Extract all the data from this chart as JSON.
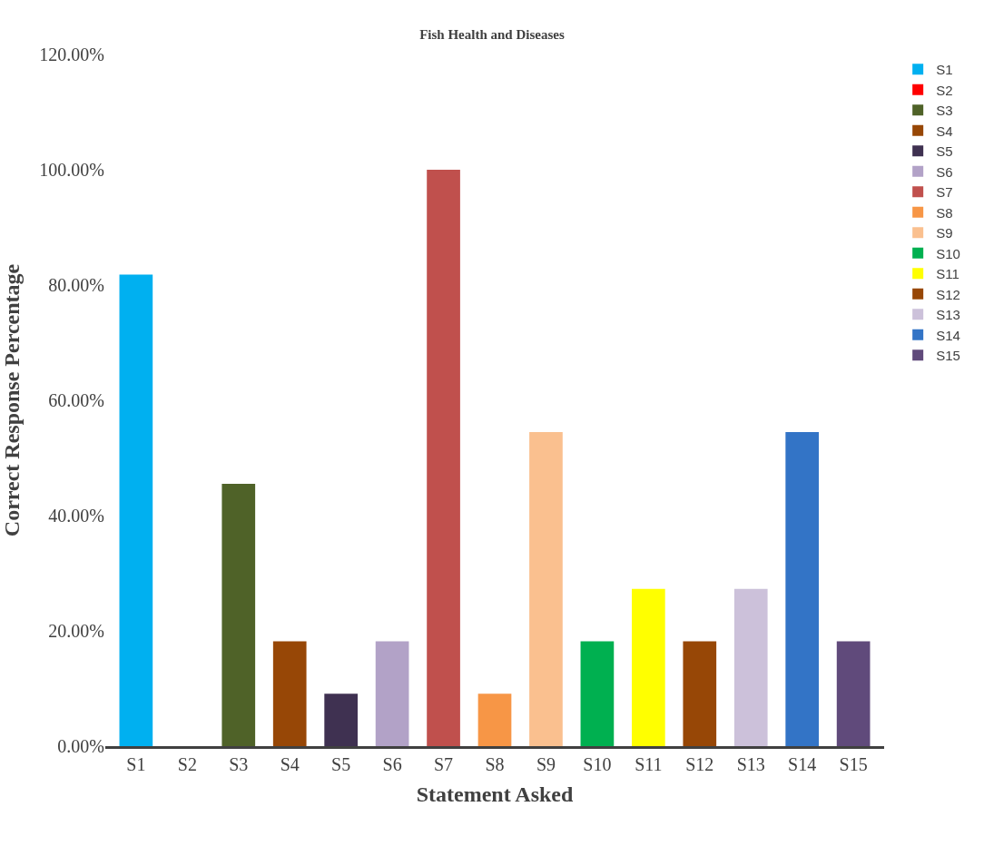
{
  "chart_data": {
    "type": "bar",
    "title": "Fish Health and Diseases",
    "xlabel": "Statement Asked",
    "ylabel": "Correct Response Percentage",
    "categories": [
      "S1",
      "S2",
      "S3",
      "S4",
      "S5",
      "S6",
      "S7",
      "S8",
      "S9",
      "S10",
      "S11",
      "S12",
      "S13",
      "S14",
      "S15"
    ],
    "series": [
      {
        "name": "S1",
        "color": "#00b0f0",
        "values": [
          81.8,
          null,
          null,
          null,
          null,
          null,
          null,
          null,
          null,
          null,
          null,
          null,
          null,
          null,
          null
        ]
      },
      {
        "name": "S2",
        "color": "#ff0000",
        "values": [
          null,
          0,
          null,
          null,
          null,
          null,
          null,
          null,
          null,
          null,
          null,
          null,
          null,
          null,
          null
        ]
      },
      {
        "name": "S3",
        "color": "#4f6228",
        "values": [
          null,
          null,
          45.5,
          null,
          null,
          null,
          null,
          null,
          null,
          null,
          null,
          null,
          null,
          null,
          null
        ]
      },
      {
        "name": "S4",
        "color": "#974706",
        "values": [
          null,
          null,
          null,
          18.2,
          null,
          null,
          null,
          null,
          null,
          null,
          null,
          null,
          null,
          null,
          null
        ]
      },
      {
        "name": "S5",
        "color": "#3f3151",
        "values": [
          null,
          null,
          null,
          null,
          9.1,
          null,
          null,
          null,
          null,
          null,
          null,
          null,
          null,
          null,
          null
        ]
      },
      {
        "name": "S6",
        "color": "#b2a2c7",
        "values": [
          null,
          null,
          null,
          null,
          null,
          18.2,
          null,
          null,
          null,
          null,
          null,
          null,
          null,
          null,
          null
        ]
      },
      {
        "name": "S7",
        "color": "#c0504d",
        "values": [
          null,
          null,
          null,
          null,
          null,
          null,
          100,
          null,
          null,
          null,
          null,
          null,
          null,
          null,
          null
        ]
      },
      {
        "name": "S8",
        "color": "#f79646",
        "values": [
          null,
          null,
          null,
          null,
          null,
          null,
          null,
          9.1,
          null,
          null,
          null,
          null,
          null,
          null,
          null
        ]
      },
      {
        "name": "S9",
        "color": "#fac08f",
        "values": [
          null,
          null,
          null,
          null,
          null,
          null,
          null,
          null,
          54.5,
          null,
          null,
          null,
          null,
          null,
          null
        ]
      },
      {
        "name": "S10",
        "color": "#00b050",
        "values": [
          null,
          null,
          null,
          null,
          null,
          null,
          null,
          null,
          null,
          18.2,
          null,
          null,
          null,
          null,
          null
        ]
      },
      {
        "name": "S11",
        "color": "#ffff00",
        "values": [
          null,
          null,
          null,
          null,
          null,
          null,
          null,
          null,
          null,
          null,
          27.3,
          null,
          null,
          null,
          null
        ]
      },
      {
        "name": "S12",
        "color": "#974706",
        "values": [
          null,
          null,
          null,
          null,
          null,
          null,
          null,
          null,
          null,
          null,
          null,
          18.2,
          null,
          null,
          null
        ]
      },
      {
        "name": "S13",
        "color": "#ccc1da",
        "values": [
          null,
          null,
          null,
          null,
          null,
          null,
          null,
          null,
          null,
          null,
          null,
          null,
          27.3,
          null,
          null
        ]
      },
      {
        "name": "S14",
        "color": "#3374c6",
        "values": [
          null,
          null,
          null,
          null,
          null,
          null,
          null,
          null,
          null,
          null,
          null,
          null,
          null,
          54.5,
          null
        ]
      },
      {
        "name": "S15",
        "color": "#604a7b",
        "values": [
          null,
          null,
          null,
          null,
          null,
          null,
          null,
          null,
          null,
          null,
          null,
          null,
          null,
          null,
          18.2
        ]
      }
    ],
    "ylim": [
      0,
      120
    ],
    "yticks": [
      {
        "value": 0,
        "label": "0.00%"
      },
      {
        "value": 20,
        "label": "20.00%"
      },
      {
        "value": 40,
        "label": "40.00%"
      },
      {
        "value": 60,
        "label": "60.00%"
      },
      {
        "value": 80,
        "label": "80.00%"
      },
      {
        "value": 100,
        "label": "100.00%"
      },
      {
        "value": 120,
        "label": "120.00%"
      }
    ],
    "legend": "right"
  }
}
